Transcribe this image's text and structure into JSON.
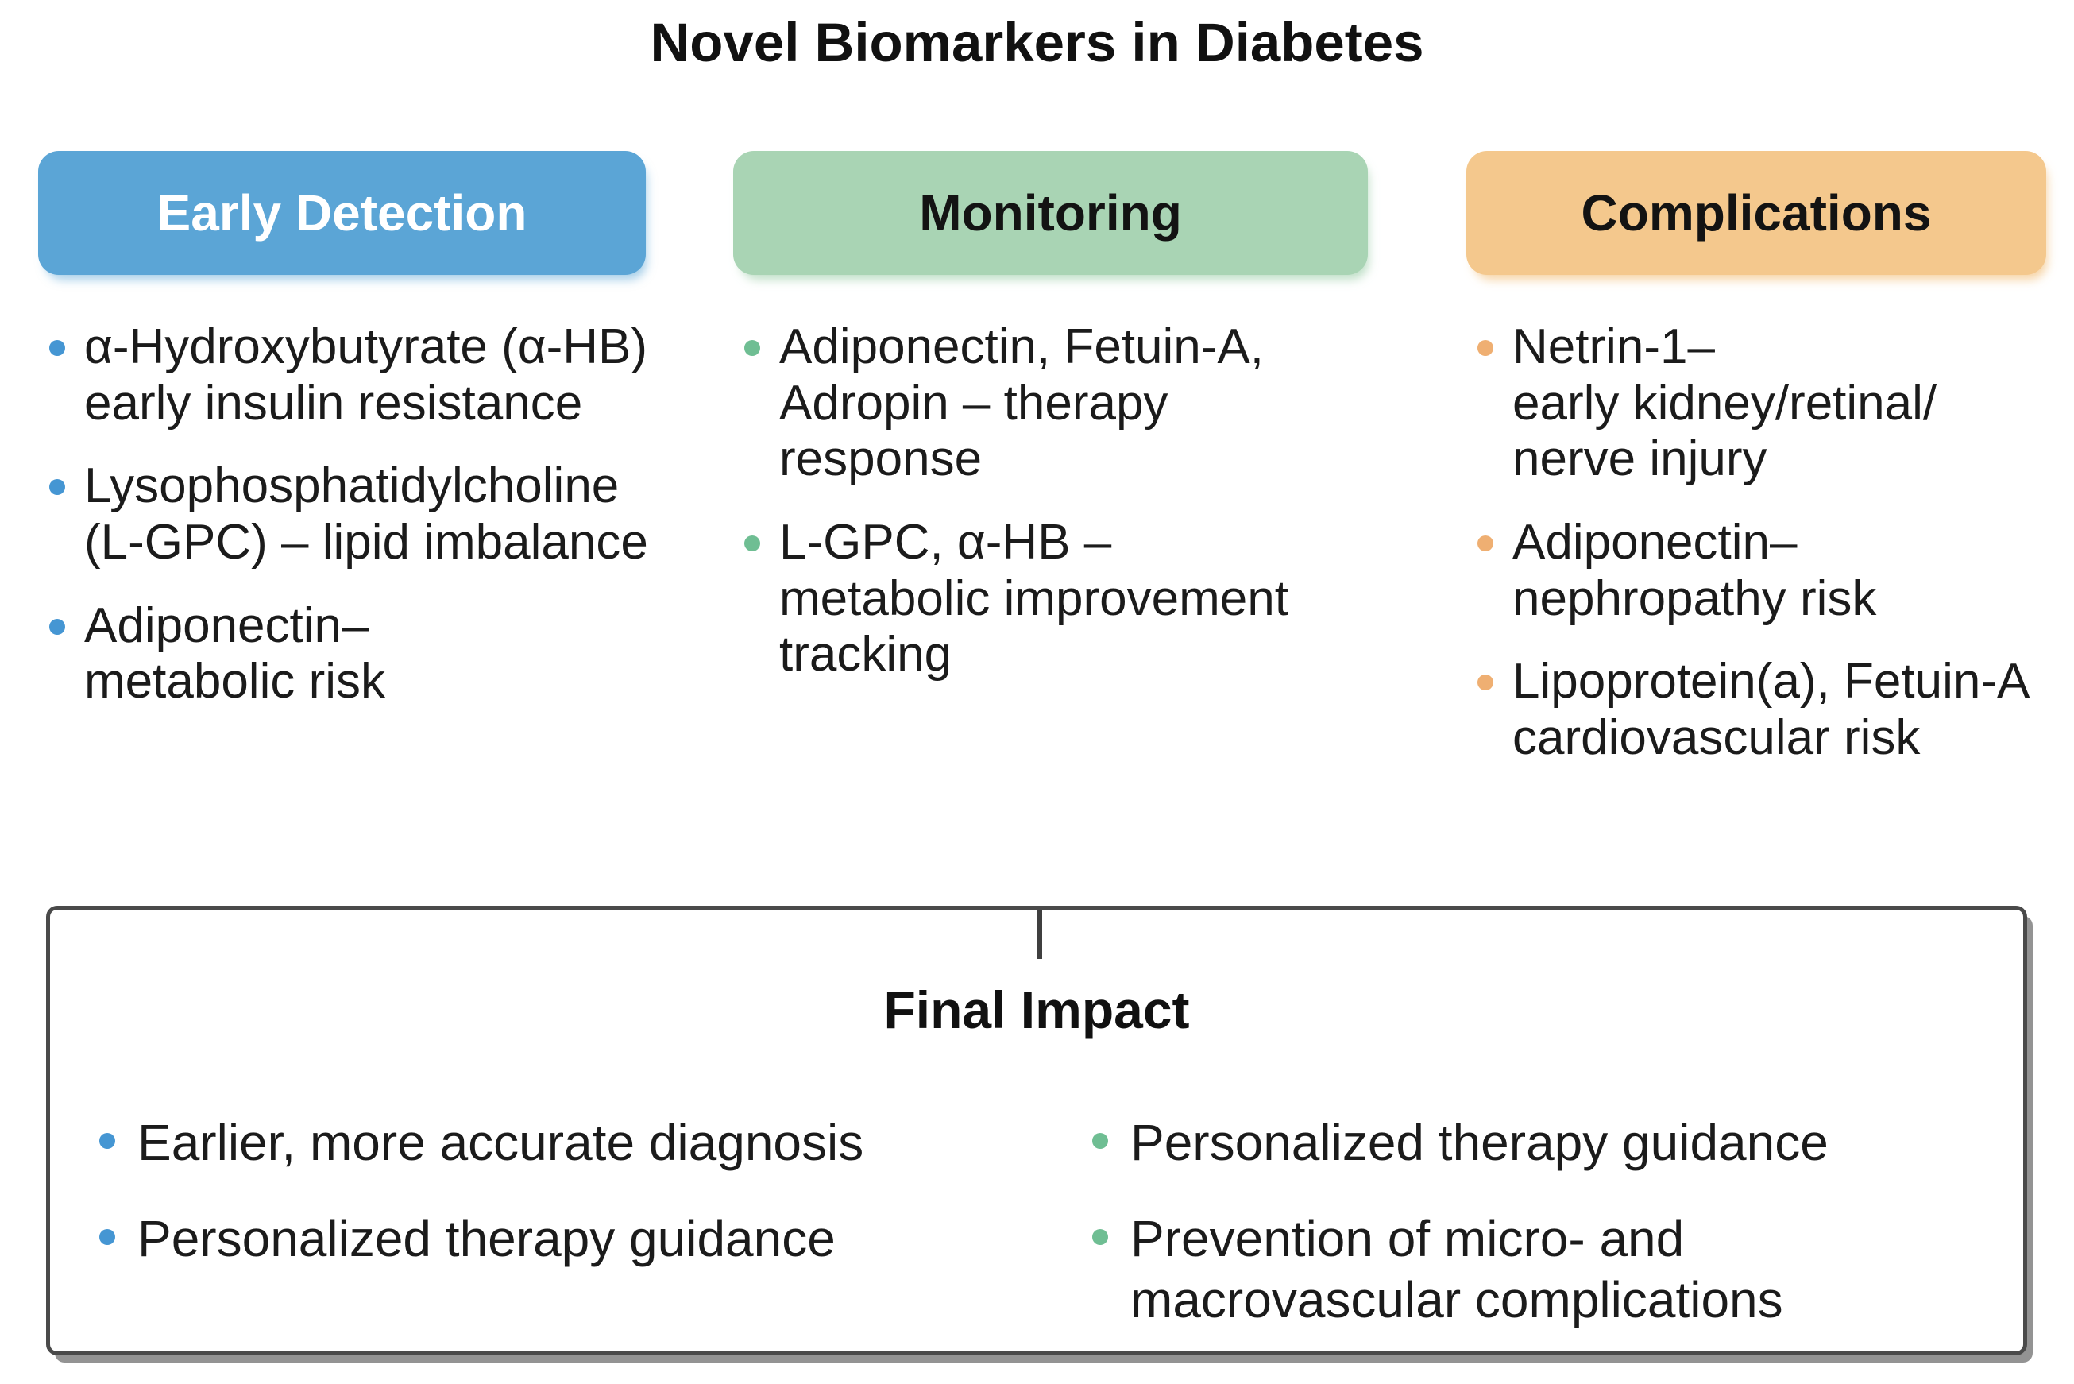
{
  "title": "Novel Biomarkers in Diabetes",
  "columns": [
    {
      "header": "Early Detection",
      "items": [
        {
          "text": "α-Hydroxybutyrate (α-HB)\nearly insulin resistance"
        },
        {
          "text": "Lysophosphatidylcholine\n(L-GPC) – lipid imbalance"
        },
        {
          "text": "Adiponectin–\nmetabolic risk"
        }
      ]
    },
    {
      "header": "Monitoring",
      "items": [
        {
          "text": "Adiponectin, Fetuin-A,\nAdropin – therapy\nresponse"
        },
        {
          "text": "L-GPC, α-HB –\nmetabolic improvement\ntracking"
        }
      ]
    },
    {
      "header": "Complications",
      "items": [
        {
          "text": "Netrin-1–\nearly kidney/retinal/\nnerve injury"
        },
        {
          "text": "Adiponectin–\nnephropathy risk"
        },
        {
          "text": "Lipoprotein(a), Fetuin-A\ncardiovascular risk"
        }
      ]
    }
  ],
  "final_impact": {
    "title": "Final Impact",
    "left_items": [
      {
        "text": "Earlier, more accurate diagnosis"
      },
      {
        "text": "Personalized therapy guidance"
      }
    ],
    "right_items": [
      {
        "text": "Personalized therapy guidance"
      },
      {
        "text": "Prevention of micro- and\nmacrovascular complications"
      }
    ]
  },
  "colors": {
    "early_detection_bg": "#5BA5D6",
    "early_detection_text": "#FFFFFF",
    "monitoring_bg": "#A9D4B4",
    "complications_bg": "#F4C88D",
    "header_text_dark": "#131313",
    "bullet_blue": "#4596D3",
    "bullet_green": "#6FBE93",
    "bullet_orange": "#EFAF72",
    "body_text": "#1B1B1B",
    "final_box_border": "#4A4A4A"
  }
}
